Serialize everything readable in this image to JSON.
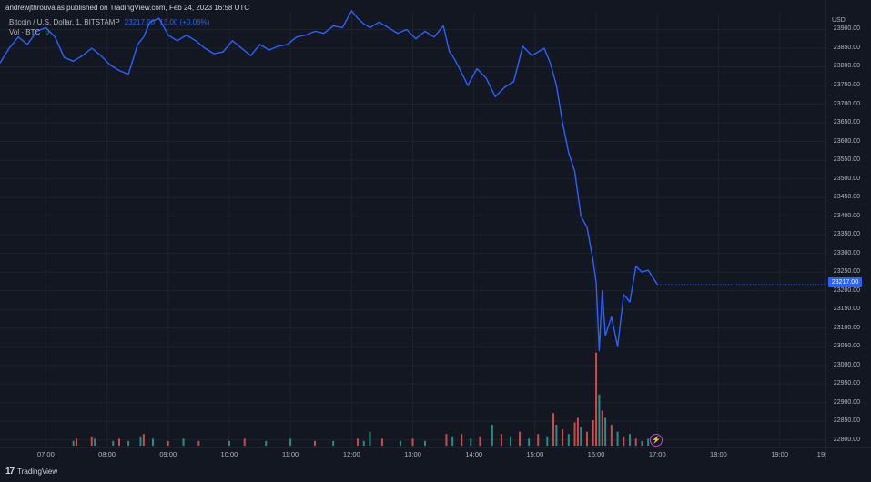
{
  "header": {
    "published_by": "andrewjthrouvalas published on TradingView.com, Feb 24, 2023 16:58 UTC"
  },
  "legend": {
    "symbol": "Bitcoin / U.S. Dollar, 1, BITSTAMP",
    "last": "23217.00",
    "change": "13.00 (+0.06%)",
    "volume_label": "Vol · BTC",
    "volume_value": "0"
  },
  "price_axis": {
    "currency": "USD",
    "last_price_badge": "23217.00"
  },
  "footer": {
    "brand": "TradingView",
    "logo_glyph": "17"
  },
  "colors": {
    "background": "#131722",
    "line": "#2962ff",
    "grid": "#1e222d",
    "vol_up": "#26a69a",
    "vol_down": "#ef5350"
  },
  "chart_data": {
    "type": "line",
    "xlabel": "",
    "ylabel": "",
    "x_tick_labels": [
      "07:00",
      "08:00",
      "09:00",
      "10:00",
      "11:00",
      "12:00",
      "13:00",
      "14:00",
      "15:00",
      "16:00",
      "17:00",
      "18:00",
      "19:00",
      "19:"
    ],
    "y_tick_labels": [
      "23900.00",
      "23850.00",
      "23800.00",
      "23750.00",
      "23700.00",
      "23650.00",
      "23600.00",
      "23550.00",
      "23500.00",
      "23450.00",
      "23400.00",
      "23350.00",
      "23300.00",
      "23250.00",
      "23200.00",
      "23150.00",
      "23100.00",
      "23050.00",
      "23000.00",
      "22950.00",
      "22900.00",
      "22850.00",
      "22800.00"
    ],
    "ylim": [
      22780,
      23945
    ],
    "x_range_hours": [
      6.25,
      19.75
    ],
    "grid": true,
    "series": [
      {
        "name": "Bitcoin / U.S. Dollar",
        "x": [
          6.25,
          6.4,
          6.55,
          6.7,
          6.85,
          7.0,
          7.15,
          7.3,
          7.45,
          7.6,
          7.75,
          7.9,
          8.05,
          8.2,
          8.35,
          8.5,
          8.6,
          8.7,
          8.85,
          9.0,
          9.15,
          9.3,
          9.45,
          9.6,
          9.75,
          9.9,
          10.05,
          10.2,
          10.35,
          10.5,
          10.65,
          10.8,
          10.95,
          11.1,
          11.25,
          11.4,
          11.55,
          11.7,
          11.85,
          12.0,
          12.1,
          12.2,
          12.3,
          12.45,
          12.6,
          12.75,
          12.9,
          13.05,
          13.2,
          13.35,
          13.5,
          13.6,
          13.65,
          13.75,
          13.9,
          14.05,
          14.2,
          14.35,
          14.5,
          14.65,
          14.8,
          14.95,
          15.05,
          15.15,
          15.25,
          15.35,
          15.45,
          15.55,
          15.65,
          15.75,
          15.85,
          15.95,
          16.0,
          16.05,
          16.1,
          16.15,
          16.25,
          16.35,
          16.45,
          16.55,
          16.65,
          16.75,
          16.85,
          16.95,
          17.0
        ],
        "values": [
          23810,
          23850,
          23880,
          23860,
          23895,
          23905,
          23880,
          23825,
          23815,
          23830,
          23850,
          23830,
          23805,
          23790,
          23780,
          23860,
          23880,
          23920,
          23930,
          23885,
          23870,
          23885,
          23870,
          23850,
          23835,
          23840,
          23870,
          23850,
          23830,
          23860,
          23845,
          23855,
          23860,
          23880,
          23885,
          23895,
          23890,
          23910,
          23905,
          23950,
          23930,
          23915,
          23905,
          23920,
          23905,
          23890,
          23900,
          23875,
          23895,
          23880,
          23910,
          23840,
          23830,
          23800,
          23750,
          23795,
          23770,
          23720,
          23745,
          23760,
          23855,
          23830,
          23840,
          23850,
          23810,
          23750,
          23650,
          23570,
          23520,
          23400,
          23370,
          23280,
          23220,
          23040,
          23200,
          23080,
          23130,
          23050,
          23190,
          23170,
          23265,
          23250,
          23255,
          23230,
          23217
        ]
      }
    ],
    "volume": {
      "name": "Vol · BTC",
      "bars": [
        {
          "x": 7.45,
          "v": 2,
          "up": true
        },
        {
          "x": 7.5,
          "v": 3,
          "up": false
        },
        {
          "x": 7.75,
          "v": 4,
          "up": false
        },
        {
          "x": 7.8,
          "v": 3,
          "up": true
        },
        {
          "x": 8.1,
          "v": 2,
          "up": true
        },
        {
          "x": 8.2,
          "v": 3,
          "up": false
        },
        {
          "x": 8.35,
          "v": 2,
          "up": true
        },
        {
          "x": 8.55,
          "v": 4,
          "up": true
        },
        {
          "x": 8.6,
          "v": 5,
          "up": false
        },
        {
          "x": 8.75,
          "v": 3,
          "up": true
        },
        {
          "x": 9.0,
          "v": 2,
          "up": false
        },
        {
          "x": 9.25,
          "v": 3,
          "up": true
        },
        {
          "x": 9.5,
          "v": 2,
          "up": false
        },
        {
          "x": 10.0,
          "v": 2,
          "up": true
        },
        {
          "x": 10.25,
          "v": 3,
          "up": false
        },
        {
          "x": 10.6,
          "v": 2,
          "up": true
        },
        {
          "x": 11.0,
          "v": 3,
          "up": true
        },
        {
          "x": 11.4,
          "v": 2,
          "up": false
        },
        {
          "x": 11.7,
          "v": 2,
          "up": true
        },
        {
          "x": 12.1,
          "v": 3,
          "up": false
        },
        {
          "x": 12.2,
          "v": 2,
          "up": true
        },
        {
          "x": 12.3,
          "v": 6,
          "up": true
        },
        {
          "x": 12.5,
          "v": 3,
          "up": false
        },
        {
          "x": 12.8,
          "v": 2,
          "up": true
        },
        {
          "x": 13.0,
          "v": 3,
          "up": false
        },
        {
          "x": 13.2,
          "v": 2,
          "up": true
        },
        {
          "x": 13.55,
          "v": 5,
          "up": false
        },
        {
          "x": 13.65,
          "v": 4,
          "up": true
        },
        {
          "x": 13.8,
          "v": 5,
          "up": false
        },
        {
          "x": 13.95,
          "v": 3,
          "up": true
        },
        {
          "x": 14.1,
          "v": 4,
          "up": false
        },
        {
          "x": 14.3,
          "v": 9,
          "up": true
        },
        {
          "x": 14.45,
          "v": 5,
          "up": false
        },
        {
          "x": 14.6,
          "v": 4,
          "up": true
        },
        {
          "x": 14.75,
          "v": 6,
          "up": false
        },
        {
          "x": 14.9,
          "v": 3,
          "up": true
        },
        {
          "x": 15.05,
          "v": 5,
          "up": false
        },
        {
          "x": 15.2,
          "v": 4,
          "up": true
        },
        {
          "x": 15.3,
          "v": 14,
          "up": false
        },
        {
          "x": 15.35,
          "v": 9,
          "up": true
        },
        {
          "x": 15.45,
          "v": 7,
          "up": false
        },
        {
          "x": 15.55,
          "v": 5,
          "up": true
        },
        {
          "x": 15.65,
          "v": 10,
          "up": false
        },
        {
          "x": 15.7,
          "v": 12,
          "up": false
        },
        {
          "x": 15.75,
          "v": 8,
          "up": true
        },
        {
          "x": 15.85,
          "v": 6,
          "up": false
        },
        {
          "x": 15.95,
          "v": 11,
          "up": false
        },
        {
          "x": 16.0,
          "v": 40,
          "up": false
        },
        {
          "x": 16.05,
          "v": 22,
          "up": true
        },
        {
          "x": 16.1,
          "v": 15,
          "up": false
        },
        {
          "x": 16.15,
          "v": 12,
          "up": true
        },
        {
          "x": 16.25,
          "v": 9,
          "up": false
        },
        {
          "x": 16.35,
          "v": 6,
          "up": true
        },
        {
          "x": 16.45,
          "v": 4,
          "up": false
        },
        {
          "x": 16.55,
          "v": 5,
          "up": true
        },
        {
          "x": 16.65,
          "v": 3,
          "up": false
        },
        {
          "x": 16.75,
          "v": 2,
          "up": true
        },
        {
          "x": 16.85,
          "v": 3,
          "up": true
        }
      ]
    }
  }
}
